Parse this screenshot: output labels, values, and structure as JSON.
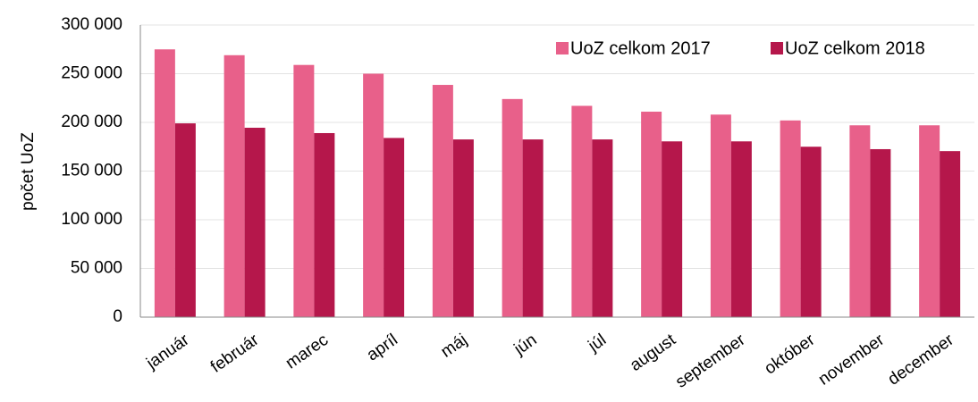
{
  "chart_data": {
    "type": "bar",
    "y_label": "počet UoZ",
    "categories": [
      "január",
      "február",
      "marec",
      "apríl",
      "máj",
      "jún",
      "júl",
      "august",
      "september",
      "október",
      "november",
      "december"
    ],
    "series": [
      {
        "name": "UoZ celkom 2017",
        "color": "#e8608a",
        "values": [
          275000,
          269000,
          259000,
          250000,
          238500,
          224000,
          217000,
          211000,
          208000,
          202000,
          197000,
          197000
        ]
      },
      {
        "name": "UoZ celkom 2018",
        "color": "#b5174b",
        "values": [
          199000,
          194500,
          189000,
          184000,
          182500,
          182500,
          182500,
          180500,
          180500,
          175000,
          172500,
          170500
        ]
      }
    ],
    "ylim": [
      0,
      300000
    ],
    "yticks": [
      0,
      {
        "value": 50000,
        "label": "50 000"
      },
      {
        "value": 100000,
        "label": "100 000"
      },
      {
        "value": 150000,
        "label": "150 000"
      },
      {
        "value": 200000,
        "label": "200 000"
      },
      {
        "value": 250000,
        "label": "250 000"
      },
      {
        "value": 300000,
        "label": "300 000"
      }
    ],
    "grid": true,
    "legend": "top-right"
  }
}
